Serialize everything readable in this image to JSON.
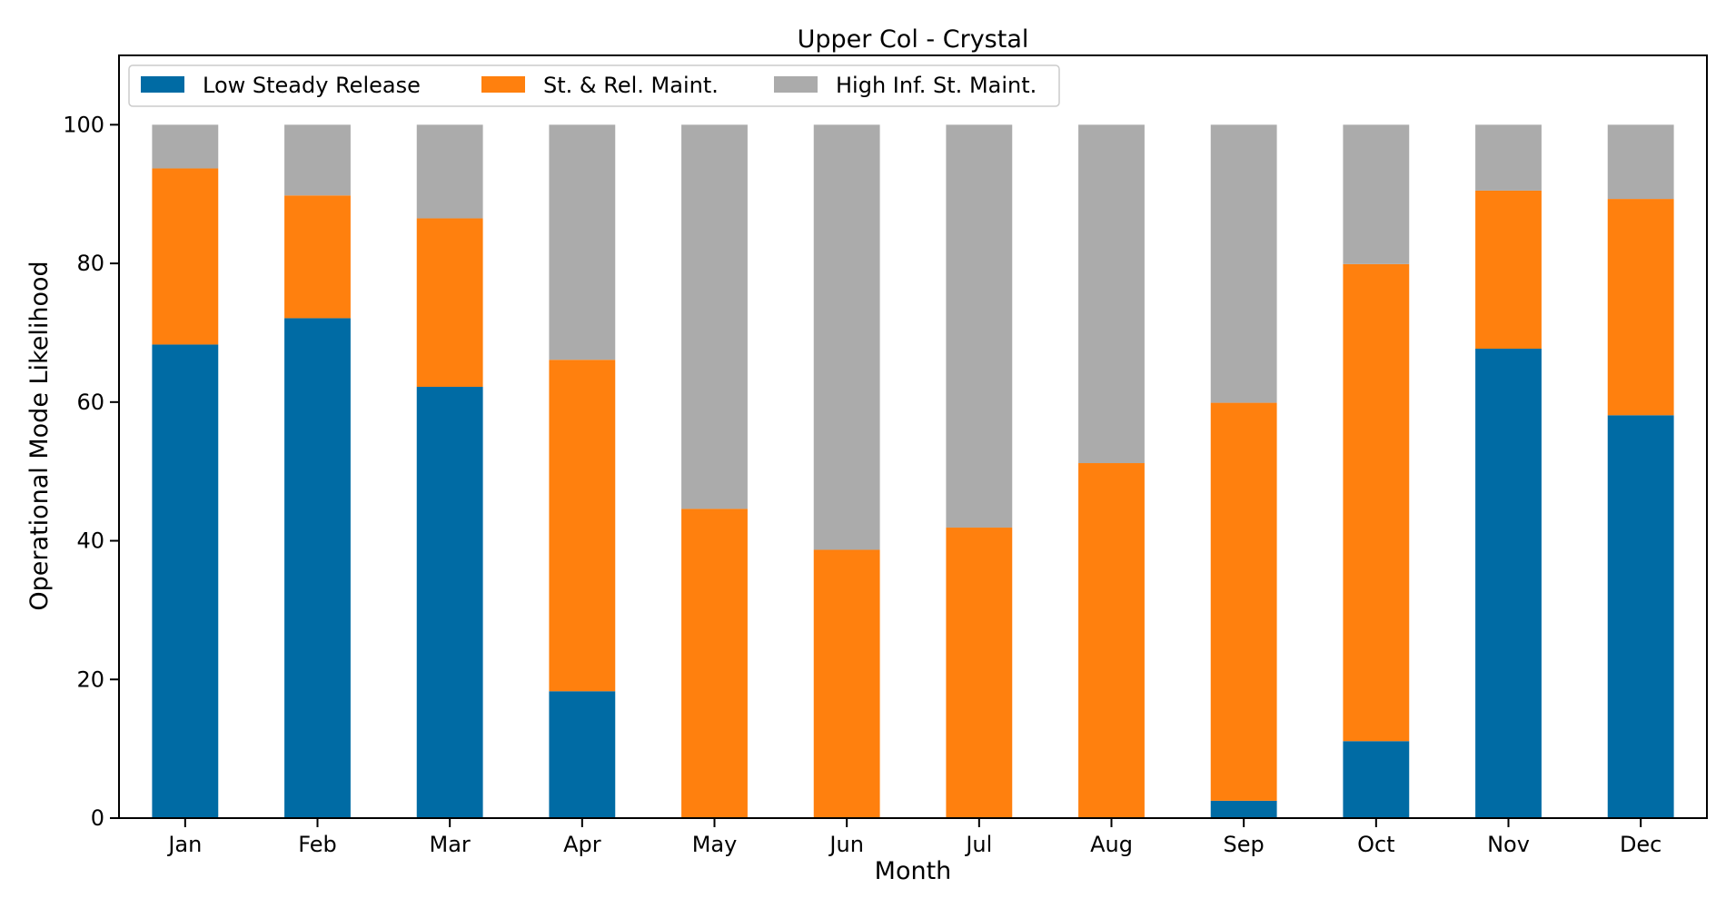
{
  "chart_data": {
    "type": "bar",
    "stacked": true,
    "title": "Upper Col - Crystal",
    "xlabel": "Month",
    "ylabel": "Operational Mode Likelihood",
    "ylim": [
      0,
      110
    ],
    "yticks": [
      0,
      20,
      40,
      60,
      80,
      100
    ],
    "grid": false,
    "legend_position": "top-left",
    "categories": [
      "Jan",
      "Feb",
      "Mar",
      "Apr",
      "May",
      "Jun",
      "Jul",
      "Aug",
      "Sep",
      "Oct",
      "Nov",
      "Dec"
    ],
    "series": [
      {
        "name": "Low Steady Release",
        "color": "#006ba4",
        "values": [
          68.3,
          72.1,
          62.2,
          18.3,
          0,
          0,
          0,
          0,
          2.5,
          11.1,
          67.7,
          58.1
        ]
      },
      {
        "name": "St. & Rel. Maint.",
        "color": "#ff800e",
        "values": [
          25.4,
          17.7,
          24.3,
          47.8,
          44.6,
          38.7,
          41.9,
          51.2,
          57.4,
          68.8,
          22.8,
          31.2
        ]
      },
      {
        "name": "High Inf. St. Maint.",
        "color": "#ababab",
        "values": [
          6.3,
          10.2,
          13.5,
          33.9,
          55.4,
          61.3,
          58.1,
          48.8,
          40.1,
          20.1,
          9.5,
          10.7
        ]
      }
    ]
  }
}
